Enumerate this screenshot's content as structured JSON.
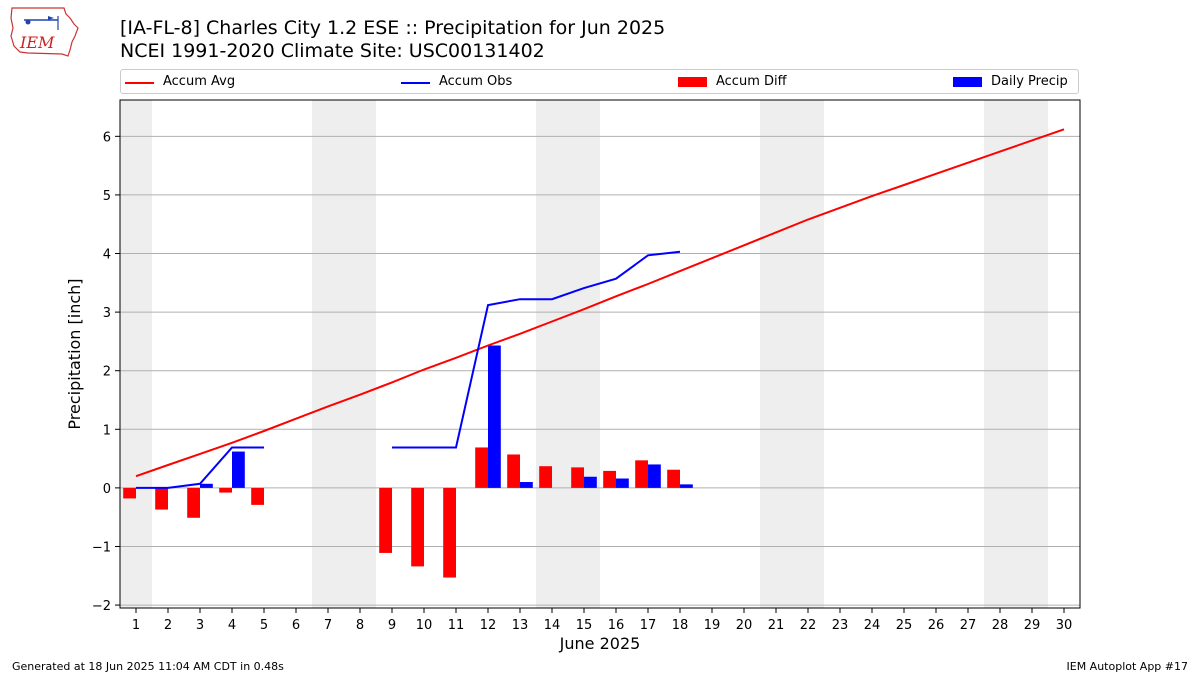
{
  "logo": {
    "text": "IEM"
  },
  "header": {
    "title_line1": "[IA-FL-8] Charles City 1.2 ESE :: Precipitation for Jun 2025",
    "title_line2": "NCEI 1991-2020 Climate Site: USC00131402"
  },
  "legend": {
    "placement": "top",
    "items": [
      {
        "label": "Accum Avg",
        "kind": "line",
        "color": "#ff0000"
      },
      {
        "label": "Accum Obs",
        "kind": "line",
        "color": "#0000ff"
      },
      {
        "label": "Accum Diff",
        "kind": "box",
        "color": "#ff0000"
      },
      {
        "label": "Daily Precip",
        "kind": "box",
        "color": "#0000ff"
      }
    ]
  },
  "footer": {
    "left": "Generated at 18 Jun 2025 11:04 AM CDT in 0.48s",
    "right": "IEM Autoplot App #17"
  },
  "colors": {
    "avg": "#ff0000",
    "obs": "#0000ff",
    "weekend_band": "#eeeeee",
    "grid": "#b0b0b0"
  },
  "chart_data": {
    "type": "bar",
    "xlabel": "June 2025",
    "ylabel": "Precipitation [inch]",
    "x": [
      1,
      2,
      3,
      4,
      5,
      6,
      7,
      8,
      9,
      10,
      11,
      12,
      13,
      14,
      15,
      16,
      17,
      18,
      19,
      20,
      21,
      22,
      23,
      24,
      25,
      26,
      27,
      28,
      29,
      30
    ],
    "xlim": [
      0.5,
      30.5
    ],
    "ylim": [
      -2.05,
      6.62
    ],
    "yticks": [
      -2,
      -1,
      0,
      1,
      2,
      3,
      4,
      5,
      6
    ],
    "ytick_labels": [
      "−2",
      "−1",
      "0",
      "1",
      "2",
      "3",
      "4",
      "5",
      "6"
    ],
    "grid": "horizontal",
    "shaded_days": [
      1,
      7,
      8,
      14,
      15,
      21,
      22,
      28,
      29
    ],
    "series": [
      {
        "name": "Accum Avg",
        "kind": "line",
        "color": "#ff0000",
        "x": [
          1,
          2,
          3,
          4,
          5,
          6,
          7,
          8,
          9,
          10,
          11,
          12,
          13,
          14,
          15,
          16,
          17,
          18,
          19,
          20,
          21,
          22,
          23,
          24,
          25,
          26,
          27,
          28,
          29,
          30
        ],
        "values": [
          0.2,
          0.39,
          0.58,
          0.77,
          0.97,
          1.18,
          1.39,
          1.59,
          1.8,
          2.02,
          2.22,
          2.43,
          2.63,
          2.84,
          3.05,
          3.27,
          3.48,
          3.7,
          3.92,
          4.14,
          4.36,
          4.58,
          4.78,
          4.98,
          5.17,
          5.36,
          5.55,
          5.74,
          5.93,
          6.12
        ]
      },
      {
        "name": "Accum Obs",
        "kind": "line",
        "color": "#0000ff",
        "segments": [
          {
            "x": [
              1,
              2,
              3,
              4,
              5
            ],
            "values": [
              0.0,
              0.0,
              0.07,
              0.69,
              0.69
            ]
          },
          {
            "x": [
              9,
              10,
              11,
              12,
              13,
              14,
              15,
              16,
              17,
              18
            ],
            "values": [
              0.69,
              0.69,
              0.69,
              3.12,
              3.22,
              3.22,
              3.41,
              3.57,
              3.97,
              4.03
            ]
          }
        ]
      },
      {
        "name": "Accum Diff",
        "kind": "bar",
        "color": "#ff0000",
        "offset": "left",
        "x": [
          1,
          2,
          3,
          4,
          5,
          9,
          10,
          11,
          12,
          13,
          14,
          15,
          16,
          17,
          18
        ],
        "values": [
          -0.18,
          -0.37,
          -0.51,
          -0.08,
          -0.29,
          -1.11,
          -1.34,
          -1.53,
          0.69,
          0.57,
          0.37,
          0.35,
          0.29,
          0.47,
          0.31
        ]
      },
      {
        "name": "Daily Precip",
        "kind": "bar",
        "color": "#0000ff",
        "offset": "right",
        "x": [
          3,
          4,
          12,
          13,
          15,
          16,
          17,
          18
        ],
        "values": [
          0.07,
          0.62,
          2.43,
          0.1,
          0.19,
          0.16,
          0.4,
          0.06
        ]
      }
    ]
  }
}
